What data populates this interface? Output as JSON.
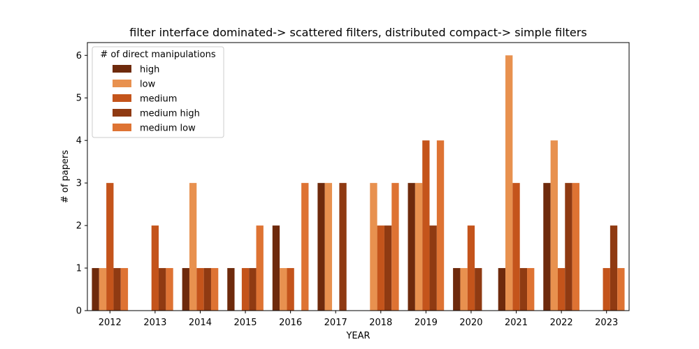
{
  "chart_data": {
    "type": "bar",
    "title": "filter interface dominated-> scattered filters, distributed compact-> simple filters",
    "xlabel": "YEAR",
    "ylabel": "# of papers",
    "ylim": [
      0,
      6.3
    ],
    "yticks": [
      0,
      1,
      2,
      3,
      4,
      5,
      6
    ],
    "categories": [
      "2012",
      "2013",
      "2014",
      "2015",
      "2016",
      "2017",
      "2018",
      "2019",
      "2020",
      "2021",
      "2022",
      "2023"
    ],
    "legend": {
      "title": "# of direct manipulations",
      "placement": "top-left"
    },
    "series": [
      {
        "name": "high",
        "color": "#6e2a0c",
        "values": [
          1,
          0,
          1,
          1,
          2,
          3,
          0,
          3,
          1,
          1,
          3,
          0
        ]
      },
      {
        "name": "low",
        "color": "#e8914f",
        "values": [
          1,
          0,
          3,
          0,
          1,
          3,
          3,
          3,
          1,
          6,
          4,
          0
        ]
      },
      {
        "name": "medium",
        "color": "#c4541b",
        "values": [
          3,
          2,
          1,
          1,
          1,
          0,
          2,
          4,
          2,
          3,
          1,
          1
        ]
      },
      {
        "name": "medium high",
        "color": "#8f3a12",
        "values": [
          1,
          1,
          1,
          1,
          0,
          3,
          2,
          2,
          1,
          1,
          3,
          2
        ]
      },
      {
        "name": "medium low",
        "color": "#de7333",
        "values": [
          1,
          1,
          1,
          2,
          3,
          0,
          3,
          4,
          0,
          1,
          3,
          1
        ]
      }
    ]
  }
}
